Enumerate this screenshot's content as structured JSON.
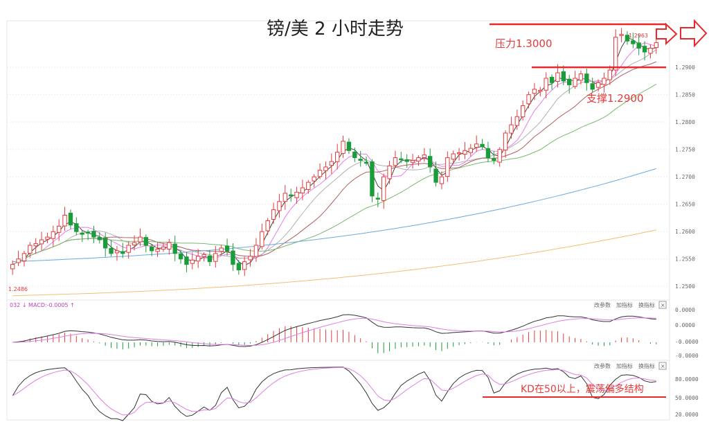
{
  "title": "镑/美  2 小时走势",
  "annotations": {
    "resistance": "压力1.3000",
    "support": "支撑1.2900",
    "kd_note": "KD在50以上，震荡偏多结构",
    "high_label": "1.2963",
    "low_label": "1.2486"
  },
  "colors": {
    "up": "#e8393a",
    "down": "#1a9c3a",
    "ma1": "#444444",
    "ma2": "#e87de8",
    "ma3": "#b0b0b0",
    "ma4": "#b06060",
    "ma5": "#7ab870",
    "ma6": "#6aa9dd",
    "ma7": "#f2c070",
    "red_line": "#e8282a"
  },
  "macd_panel": {
    "label": "032 ↓ MACD:-0.0005 ↑",
    "buttons": [
      "改参数",
      "加指标",
      "换指标",
      "×"
    ],
    "ticks": [
      "0.0000",
      "0.0000",
      "-0.0000",
      "-0.0000"
    ]
  },
  "kd_panel": {
    "buttons": [
      "改参数",
      "加指标",
      "换指标",
      "×"
    ],
    "ticks": [
      "80.0000",
      "50.0000",
      "20.0000"
    ]
  },
  "chart_data": {
    "type": "candlestick",
    "title": "镑/美  2 小时走势",
    "y_ticks": [
      "1.2900",
      "1.2850",
      "1.2800",
      "1.2750",
      "1.2700",
      "1.2650",
      "1.2600",
      "1.2550",
      "1.2500"
    ],
    "ylim": [
      1.2475,
      1.2985
    ],
    "resistance": 1.3,
    "support": 1.29,
    "closes": [
      1.254,
      1.255,
      1.256,
      1.2575,
      1.2578,
      1.2585,
      1.259,
      1.26,
      1.261,
      1.263,
      1.2612,
      1.26,
      1.2595,
      1.2598,
      1.259,
      1.2585,
      1.257,
      1.256,
      1.2565,
      1.256,
      1.2575,
      1.258,
      1.259,
      1.2575,
      1.2565,
      1.2568,
      1.2572,
      1.258,
      1.256,
      1.255,
      1.254,
      1.2548,
      1.2555,
      1.2558,
      1.2545,
      1.256,
      1.257,
      1.2565,
      1.254,
      1.253,
      1.2545,
      1.2555,
      1.2575,
      1.26,
      1.262,
      1.264,
      1.2655,
      1.267,
      1.2665,
      1.2672,
      1.268,
      1.269,
      1.27,
      1.2712,
      1.2718,
      1.2728,
      1.2745,
      1.2765,
      1.2748,
      1.2735,
      1.273,
      1.2725,
      1.2665,
      1.266,
      1.27,
      1.272,
      1.2735,
      1.2732,
      1.2728,
      1.273,
      1.2735,
      1.274,
      1.2718,
      1.269,
      1.27,
      1.2735,
      1.2742,
      1.2744,
      1.2748,
      1.2752,
      1.276,
      1.2755,
      1.2735,
      1.273,
      1.275,
      1.278,
      1.2795,
      1.281,
      1.283,
      1.285,
      1.286,
      1.2858,
      1.288,
      1.2872,
      1.289,
      1.2875,
      1.2868,
      1.288,
      1.2888,
      1.2872,
      1.286,
      1.2872,
      1.288,
      1.2895,
      1.2955,
      1.296,
      1.2948,
      1.2943,
      1.2935,
      1.2928,
      1.2935,
      1.2945
    ],
    "kd_ticks": [
      "80.0000",
      "50.0000",
      "20.0000"
    ],
    "kd_reference": 50
  }
}
